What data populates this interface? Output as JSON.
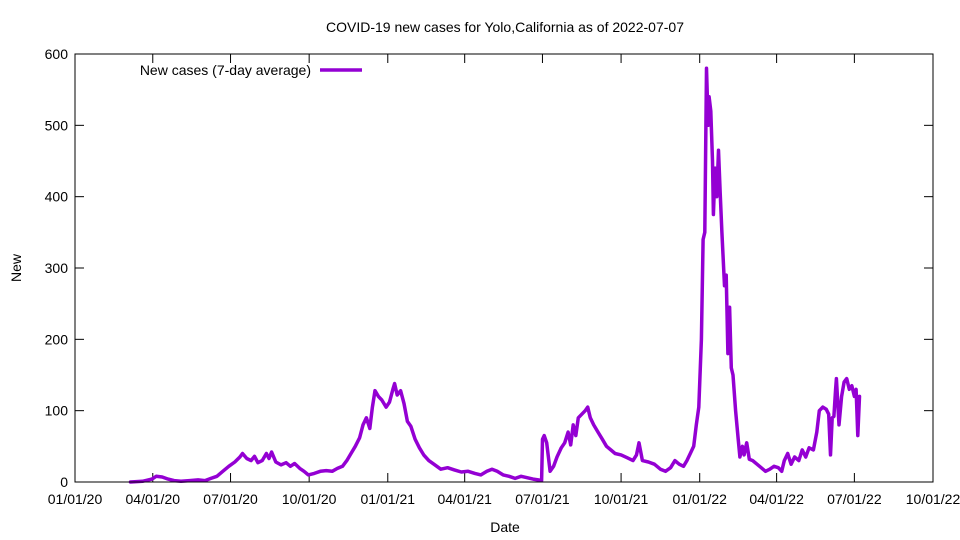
{
  "chart_data": {
    "type": "line",
    "title": "COVID-19 new cases for Yolo,California as of 2022-07-07",
    "xlabel": "Date",
    "ylabel": "New",
    "xlim": [
      "2020-01-01",
      "2022-10-01"
    ],
    "ylim": [
      0,
      600
    ],
    "x_ticks": [
      {
        "date": "2020-01-01",
        "label": "01/01/20"
      },
      {
        "date": "2020-04-01",
        "label": "04/01/20"
      },
      {
        "date": "2020-07-01",
        "label": "07/01/20"
      },
      {
        "date": "2020-10-01",
        "label": "10/01/20"
      },
      {
        "date": "2021-01-01",
        "label": "01/01/21"
      },
      {
        "date": "2021-04-01",
        "label": "04/01/21"
      },
      {
        "date": "2021-07-01",
        "label": "07/01/21"
      },
      {
        "date": "2021-10-01",
        "label": "10/01/21"
      },
      {
        "date": "2022-01-01",
        "label": "01/01/22"
      },
      {
        "date": "2022-04-01",
        "label": "04/01/22"
      },
      {
        "date": "2022-07-01",
        "label": "07/01/22"
      },
      {
        "date": "2022-10-01",
        "label": "10/01/22"
      }
    ],
    "y_ticks": [
      0,
      100,
      200,
      300,
      400,
      500,
      600
    ],
    "grid": false,
    "legend_position": "top-left",
    "series": [
      {
        "name": "New cases (7-day average)",
        "color": "#9400d3",
        "points": [
          [
            "2020-03-06",
            0
          ],
          [
            "2020-03-20",
            1
          ],
          [
            "2020-03-31",
            4
          ],
          [
            "2020-04-05",
            8
          ],
          [
            "2020-04-12",
            7
          ],
          [
            "2020-04-19",
            4
          ],
          [
            "2020-04-26",
            2
          ],
          [
            "2020-05-04",
            1
          ],
          [
            "2020-05-14",
            2
          ],
          [
            "2020-05-24",
            3
          ],
          [
            "2020-06-01",
            2
          ],
          [
            "2020-06-08",
            5
          ],
          [
            "2020-06-15",
            8
          ],
          [
            "2020-06-22",
            15
          ],
          [
            "2020-06-29",
            22
          ],
          [
            "2020-07-06",
            28
          ],
          [
            "2020-07-12",
            35
          ],
          [
            "2020-07-15",
            40
          ],
          [
            "2020-07-20",
            33
          ],
          [
            "2020-07-25",
            30
          ],
          [
            "2020-07-29",
            36
          ],
          [
            "2020-08-02",
            27
          ],
          [
            "2020-08-07",
            30
          ],
          [
            "2020-08-12",
            40
          ],
          [
            "2020-08-15",
            33
          ],
          [
            "2020-08-18",
            42
          ],
          [
            "2020-08-23",
            28
          ],
          [
            "2020-08-29",
            24
          ],
          [
            "2020-09-04",
            27
          ],
          [
            "2020-09-09",
            22
          ],
          [
            "2020-09-14",
            26
          ],
          [
            "2020-09-20",
            19
          ],
          [
            "2020-09-25",
            15
          ],
          [
            "2020-09-30",
            10
          ],
          [
            "2020-10-07",
            12
          ],
          [
            "2020-10-14",
            15
          ],
          [
            "2020-10-21",
            16
          ],
          [
            "2020-10-28",
            15
          ],
          [
            "2020-11-03",
            19
          ],
          [
            "2020-11-09",
            22
          ],
          [
            "2020-11-14",
            30
          ],
          [
            "2020-11-19",
            40
          ],
          [
            "2020-11-24",
            50
          ],
          [
            "2020-11-29",
            62
          ],
          [
            "2020-12-03",
            80
          ],
          [
            "2020-12-07",
            90
          ],
          [
            "2020-12-11",
            75
          ],
          [
            "2020-12-14",
            105
          ],
          [
            "2020-12-17",
            128
          ],
          [
            "2020-12-21",
            120
          ],
          [
            "2020-12-25",
            115
          ],
          [
            "2020-12-30",
            105
          ],
          [
            "2021-01-03",
            112
          ],
          [
            "2021-01-07",
            130
          ],
          [
            "2021-01-09",
            138
          ],
          [
            "2021-01-12",
            122
          ],
          [
            "2021-01-16",
            128
          ],
          [
            "2021-01-20",
            110
          ],
          [
            "2021-01-24",
            85
          ],
          [
            "2021-01-28",
            78
          ],
          [
            "2021-02-02",
            60
          ],
          [
            "2021-02-07",
            48
          ],
          [
            "2021-02-12",
            38
          ],
          [
            "2021-02-18",
            30
          ],
          [
            "2021-02-24",
            25
          ],
          [
            "2021-03-04",
            18
          ],
          [
            "2021-03-12",
            20
          ],
          [
            "2021-03-20",
            17
          ],
          [
            "2021-03-28",
            14
          ],
          [
            "2021-04-05",
            15
          ],
          [
            "2021-04-13",
            12
          ],
          [
            "2021-04-20",
            10
          ],
          [
            "2021-04-27",
            15
          ],
          [
            "2021-05-03",
            18
          ],
          [
            "2021-05-09",
            15
          ],
          [
            "2021-05-16",
            10
          ],
          [
            "2021-05-23",
            8
          ],
          [
            "2021-05-30",
            5
          ],
          [
            "2021-06-06",
            8
          ],
          [
            "2021-06-13",
            6
          ],
          [
            "2021-06-20",
            4
          ],
          [
            "2021-06-26",
            3
          ],
          [
            "2021-06-30",
            2
          ],
          [
            "2021-07-01",
            60
          ],
          [
            "2021-07-03",
            65
          ],
          [
            "2021-07-06",
            55
          ],
          [
            "2021-07-10",
            15
          ],
          [
            "2021-07-14",
            22
          ],
          [
            "2021-07-18",
            35
          ],
          [
            "2021-07-23",
            48
          ],
          [
            "2021-07-27",
            55
          ],
          [
            "2021-07-31",
            70
          ],
          [
            "2021-08-03",
            52
          ],
          [
            "2021-08-06",
            80
          ],
          [
            "2021-08-09",
            65
          ],
          [
            "2021-08-12",
            90
          ],
          [
            "2021-08-16",
            95
          ],
          [
            "2021-08-20",
            100
          ],
          [
            "2021-08-23",
            105
          ],
          [
            "2021-08-26",
            90
          ],
          [
            "2021-08-30",
            80
          ],
          [
            "2021-09-04",
            70
          ],
          [
            "2021-09-09",
            60
          ],
          [
            "2021-09-14",
            50
          ],
          [
            "2021-09-19",
            45
          ],
          [
            "2021-09-24",
            40
          ],
          [
            "2021-10-01",
            38
          ],
          [
            "2021-10-08",
            34
          ],
          [
            "2021-10-15",
            30
          ],
          [
            "2021-10-19",
            38
          ],
          [
            "2021-10-22",
            55
          ],
          [
            "2021-10-26",
            30
          ],
          [
            "2021-11-02",
            28
          ],
          [
            "2021-11-09",
            25
          ],
          [
            "2021-11-16",
            18
          ],
          [
            "2021-11-22",
            15
          ],
          [
            "2021-11-28",
            20
          ],
          [
            "2021-12-03",
            30
          ],
          [
            "2021-12-08",
            25
          ],
          [
            "2021-12-13",
            22
          ],
          [
            "2021-12-17",
            30
          ],
          [
            "2021-12-21",
            40
          ],
          [
            "2021-12-25",
            50
          ],
          [
            "2021-12-28",
            80
          ],
          [
            "2021-12-31",
            105
          ],
          [
            "2022-01-03",
            200
          ],
          [
            "2022-01-05",
            340
          ],
          [
            "2022-01-07",
            350
          ],
          [
            "2022-01-09",
            580
          ],
          [
            "2022-01-11",
            500
          ],
          [
            "2022-01-12",
            540
          ],
          [
            "2022-01-14",
            520
          ],
          [
            "2022-01-16",
            450
          ],
          [
            "2022-01-17",
            375
          ],
          [
            "2022-01-19",
            440
          ],
          [
            "2022-01-21",
            400
          ],
          [
            "2022-01-23",
            465
          ],
          [
            "2022-01-25",
            405
          ],
          [
            "2022-01-27",
            350
          ],
          [
            "2022-01-30",
            275
          ],
          [
            "2022-02-01",
            290
          ],
          [
            "2022-02-03",
            180
          ],
          [
            "2022-02-05",
            245
          ],
          [
            "2022-02-07",
            160
          ],
          [
            "2022-02-09",
            150
          ],
          [
            "2022-02-12",
            100
          ],
          [
            "2022-02-15",
            60
          ],
          [
            "2022-02-17",
            35
          ],
          [
            "2022-02-20",
            50
          ],
          [
            "2022-02-22",
            38
          ],
          [
            "2022-02-25",
            55
          ],
          [
            "2022-02-28",
            32
          ],
          [
            "2022-03-04",
            30
          ],
          [
            "2022-03-09",
            25
          ],
          [
            "2022-03-14",
            20
          ],
          [
            "2022-03-19",
            15
          ],
          [
            "2022-03-24",
            18
          ],
          [
            "2022-03-29",
            22
          ],
          [
            "2022-04-03",
            20
          ],
          [
            "2022-04-07",
            15
          ],
          [
            "2022-04-10",
            30
          ],
          [
            "2022-04-14",
            40
          ],
          [
            "2022-04-18",
            25
          ],
          [
            "2022-04-22",
            35
          ],
          [
            "2022-04-27",
            30
          ],
          [
            "2022-05-01",
            45
          ],
          [
            "2022-05-05",
            35
          ],
          [
            "2022-05-09",
            48
          ],
          [
            "2022-05-14",
            45
          ],
          [
            "2022-05-18",
            70
          ],
          [
            "2022-05-21",
            100
          ],
          [
            "2022-05-25",
            105
          ],
          [
            "2022-05-29",
            102
          ],
          [
            "2022-06-01",
            95
          ],
          [
            "2022-06-03",
            38
          ],
          [
            "2022-06-05",
            90
          ],
          [
            "2022-06-07",
            92
          ],
          [
            "2022-06-09",
            130
          ],
          [
            "2022-06-10",
            145
          ],
          [
            "2022-06-13",
            80
          ],
          [
            "2022-06-16",
            120
          ],
          [
            "2022-06-19",
            140
          ],
          [
            "2022-06-22",
            145
          ],
          [
            "2022-06-25",
            130
          ],
          [
            "2022-06-28",
            135
          ],
          [
            "2022-07-01",
            120
          ],
          [
            "2022-07-03",
            130
          ],
          [
            "2022-07-05",
            65
          ],
          [
            "2022-07-07",
            120
          ]
        ]
      }
    ]
  }
}
